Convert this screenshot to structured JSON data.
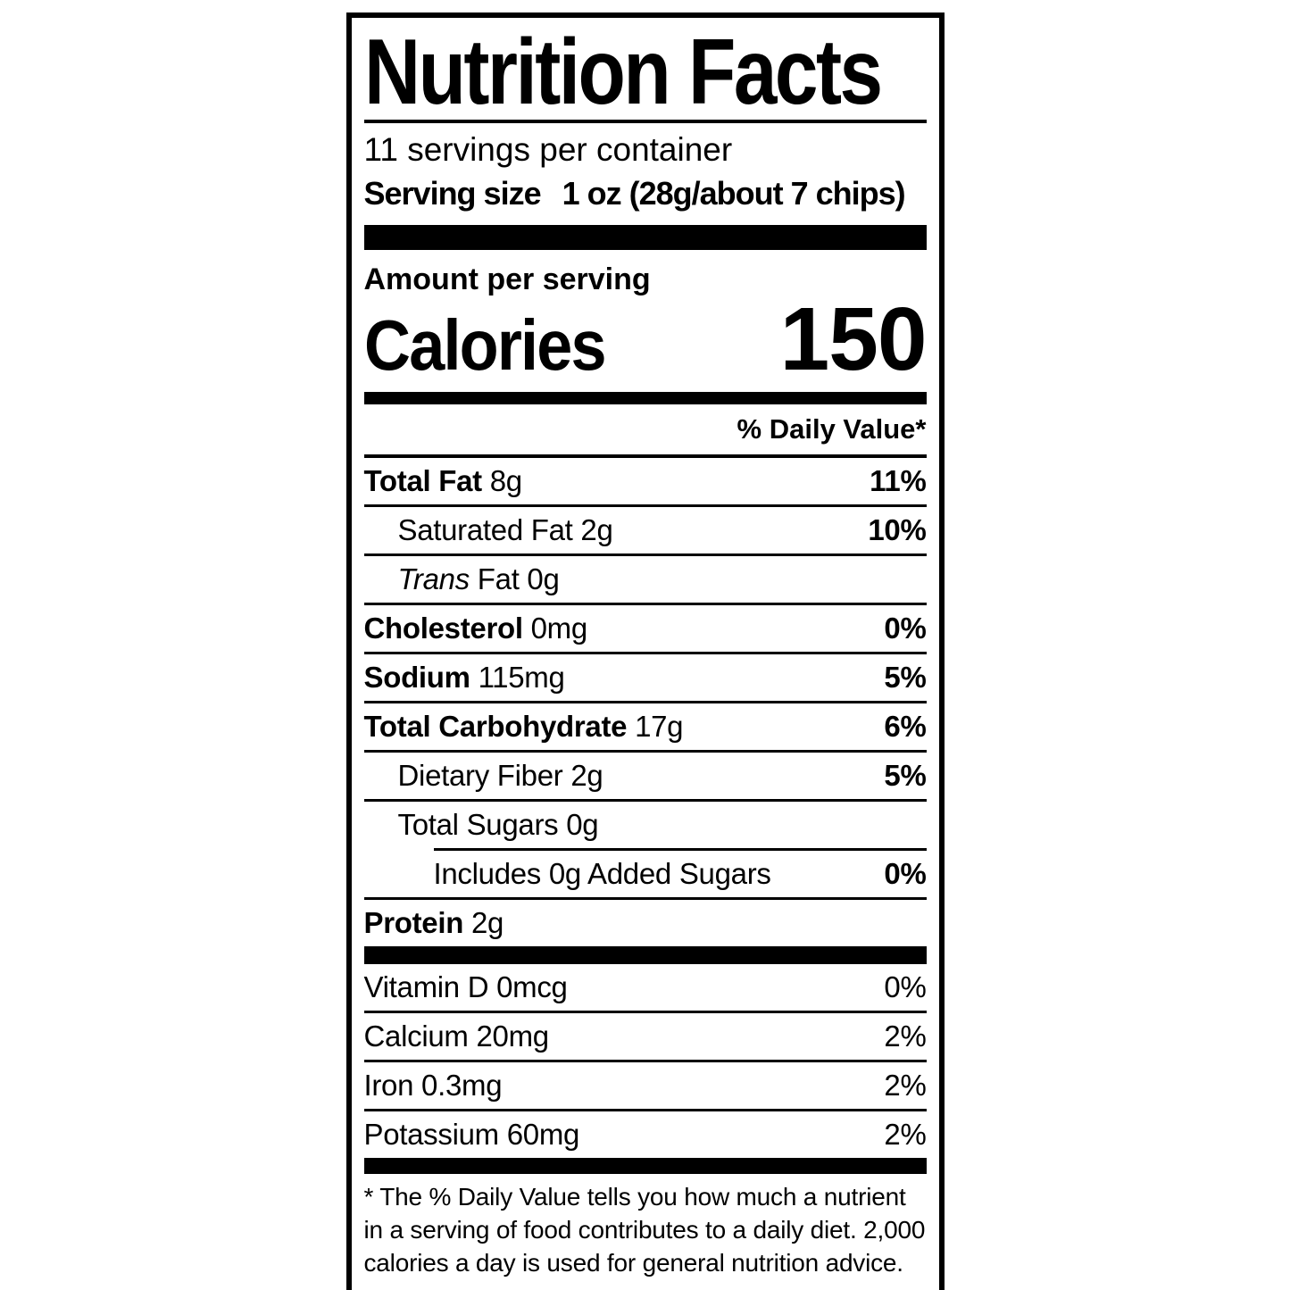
{
  "label": {
    "title": "Nutrition Facts",
    "servings_per_container": "11 servings per container",
    "serving_size_label": "Serving size",
    "serving_size_value": "1 oz (28g/about 7 chips)",
    "amount_per_serving": "Amount per serving",
    "calories_label": "Calories",
    "calories_value": "150",
    "daily_value_header": "% Daily Value*",
    "nutrients": [
      {
        "name": "Total Fat",
        "amount": "8g",
        "dv": "11%",
        "bold": true,
        "indent": 0,
        "sep": "full"
      },
      {
        "name": "Saturated Fat",
        "amount": "2g",
        "dv": "10%",
        "bold": false,
        "indent": 1,
        "sep": "full"
      },
      {
        "italic_prefix": "Trans",
        "name": "Fat",
        "amount": "0g",
        "dv": "",
        "bold": false,
        "indent": 1,
        "sep": "full"
      },
      {
        "name": "Cholesterol",
        "amount": "0mg",
        "dv": "0%",
        "bold": true,
        "indent": 0,
        "sep": "full"
      },
      {
        "name": "Sodium",
        "amount": "115mg",
        "dv": "5%",
        "bold": true,
        "indent": 0,
        "sep": "full"
      },
      {
        "name": "Total Carbohydrate",
        "amount": "17g",
        "dv": "6%",
        "bold": true,
        "indent": 0,
        "sep": "full"
      },
      {
        "name": "Dietary Fiber",
        "amount": "2g",
        "dv": "5%",
        "bold": false,
        "indent": 1,
        "sep": "full"
      },
      {
        "name": "Total Sugars",
        "amount": "0g",
        "dv": "",
        "bold": false,
        "indent": 1,
        "sep": "indent"
      },
      {
        "name": "Includes 0g Added Sugars",
        "amount": "",
        "dv": "0%",
        "bold": false,
        "indent": 2,
        "sep": "full"
      },
      {
        "name": "Protein",
        "amount": "2g",
        "dv": "",
        "bold": true,
        "indent": 0,
        "sep": "none"
      }
    ],
    "micronutrients": [
      {
        "name": "Vitamin D 0mcg",
        "dv": "0%"
      },
      {
        "name": "Calcium 20mg",
        "dv": "2%"
      },
      {
        "name": "Iron 0.3mg",
        "dv": "2%"
      },
      {
        "name": "Potassium 60mg",
        "dv": "2%"
      }
    ],
    "footnote": "* The % Daily Value tells you how much a nutrient in a serving of food contributes to a daily diet. 2,000 calories a day is used for general nutrition advice."
  }
}
